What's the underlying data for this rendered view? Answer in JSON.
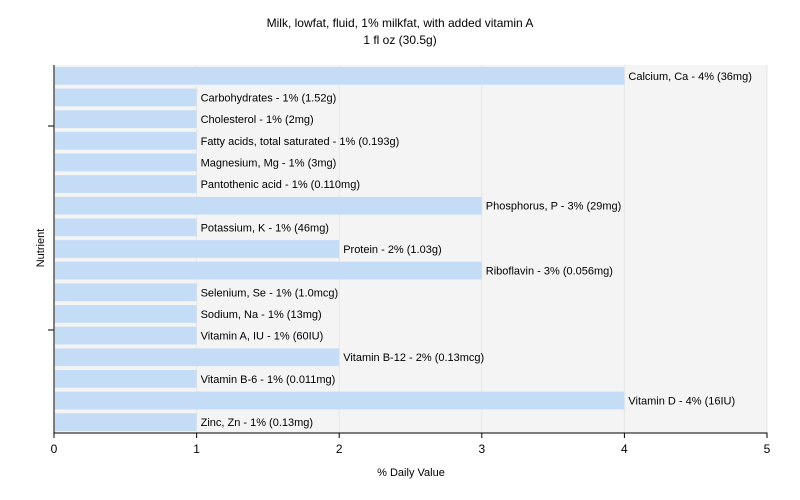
{
  "chart_data": {
    "type": "bar",
    "orientation": "horizontal",
    "title": "Milk, lowfat, fluid, 1% milkfat, with added vitamin A",
    "subtitle": "1 fl oz (30.5g)",
    "xlabel": "% Daily Value",
    "ylabel": "Nutrient",
    "xlim": [
      0,
      5
    ],
    "xticks": [
      0,
      1,
      2,
      3,
      4,
      5
    ],
    "grid": true,
    "colors": {
      "bar": "#c5dcf7",
      "plot_background": "#f4f4f4",
      "grid": "#e6e6e6",
      "axis": "#000000"
    },
    "categories": [
      "Calcium, Ca",
      "Carbohydrates",
      "Cholesterol",
      "Fatty acids, total saturated",
      "Magnesium, Mg",
      "Pantothenic acid",
      "Phosphorus, P",
      "Potassium, K",
      "Protein",
      "Riboflavin",
      "Selenium, Se",
      "Sodium, Na",
      "Vitamin A, IU",
      "Vitamin B-12",
      "Vitamin B-6",
      "Vitamin D",
      "Zinc, Zn"
    ],
    "values": [
      4,
      1,
      1,
      1,
      1,
      1,
      3,
      1,
      2,
      3,
      1,
      1,
      1,
      2,
      1,
      4,
      1
    ],
    "labels": [
      "Calcium, Ca - 4% (36mg)",
      "Carbohydrates - 1% (1.52g)",
      "Cholesterol - 1% (2mg)",
      "Fatty acids, total saturated - 1% (0.193g)",
      "Magnesium, Mg - 1% (3mg)",
      "Pantothenic acid - 1% (0.110mg)",
      "Phosphorus, P - 3% (29mg)",
      "Potassium, K - 1% (46mg)",
      "Protein - 2% (1.03g)",
      "Riboflavin - 3% (0.056mg)",
      "Selenium, Se - 1% (1.0mcg)",
      "Sodium, Na - 1% (13mg)",
      "Vitamin A, IU - 1% (60IU)",
      "Vitamin B-12 - 2% (0.13mcg)",
      "Vitamin B-6 - 1% (0.011mg)",
      "Vitamin D - 4% (16IU)",
      "Zinc, Zn - 1% (0.13mg)"
    ]
  }
}
